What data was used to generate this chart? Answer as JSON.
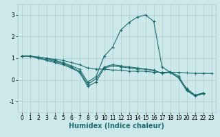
{
  "xlabel": "Humidex (Indice chaleur)",
  "xlim": [
    -0.5,
    23.5
  ],
  "ylim": [
    -1.5,
    3.5
  ],
  "bg_color": "#cce8ea",
  "grid_color": "#aacccc",
  "line_color": "#1a6b6b",
  "lines": [
    {
      "x": [
        0,
        1,
        2,
        3,
        4,
        5,
        6,
        7,
        8,
        9,
        10,
        11,
        12,
        13,
        14,
        15,
        16,
        17,
        18,
        19,
        20,
        21,
        22,
        23
      ],
      "y": [
        1.1,
        1.1,
        1.05,
        1.0,
        0.95,
        0.9,
        0.8,
        0.7,
        0.55,
        0.5,
        0.5,
        0.45,
        0.45,
        0.4,
        0.4,
        0.4,
        0.35,
        0.35,
        0.35,
        0.35,
        0.32,
        0.3,
        0.3,
        0.3
      ]
    },
    {
      "x": [
        0,
        1,
        2,
        3,
        4,
        5,
        6,
        7,
        8,
        9,
        10,
        11,
        12,
        13,
        14,
        15,
        16,
        17,
        18,
        19,
        20,
        21,
        22,
        23
      ],
      "y": [
        1.1,
        1.1,
        1.05,
        1.0,
        0.9,
        0.8,
        0.65,
        0.5,
        -0.1,
        0.15,
        1.1,
        1.5,
        2.3,
        2.65,
        2.9,
        3.0,
        2.7,
        0.6,
        0.35,
        0.1,
        -0.5,
        -0.75,
        -0.65,
        null
      ]
    },
    {
      "x": [
        0,
        1,
        2,
        3,
        4,
        5,
        6,
        7,
        8,
        9,
        10,
        11,
        12,
        13,
        14,
        15,
        16,
        17,
        18,
        19,
        20,
        21,
        22,
        23
      ],
      "y": [
        1.1,
        1.1,
        1.0,
        0.9,
        0.8,
        0.7,
        0.55,
        0.35,
        -0.3,
        -0.1,
        0.55,
        0.65,
        0.6,
        0.55,
        0.5,
        0.5,
        0.45,
        0.3,
        0.35,
        0.1,
        -0.4,
        -0.7,
        -0.6,
        null
      ]
    },
    {
      "x": [
        0,
        1,
        2,
        3,
        4,
        5,
        6,
        7,
        8,
        9,
        10,
        11,
        12,
        13,
        14,
        15,
        16,
        17,
        18,
        19,
        20,
        21,
        22,
        23
      ],
      "y": [
        1.1,
        1.1,
        1.0,
        0.95,
        0.85,
        0.75,
        0.6,
        0.4,
        -0.2,
        0.05,
        0.6,
        0.7,
        0.65,
        0.6,
        0.55,
        0.5,
        0.42,
        0.32,
        0.38,
        0.18,
        -0.45,
        -0.72,
        -0.62,
        null
      ]
    }
  ],
  "xticks": [
    0,
    1,
    2,
    3,
    4,
    5,
    6,
    7,
    8,
    9,
    10,
    11,
    12,
    13,
    14,
    15,
    16,
    17,
    18,
    19,
    20,
    21,
    22,
    23
  ],
  "yticks": [
    -1,
    0,
    1,
    2,
    3
  ],
  "marker": "+",
  "markersize": 3,
  "linewidth": 0.8,
  "tick_fontsize": 5.5,
  "label_fontsize": 7
}
